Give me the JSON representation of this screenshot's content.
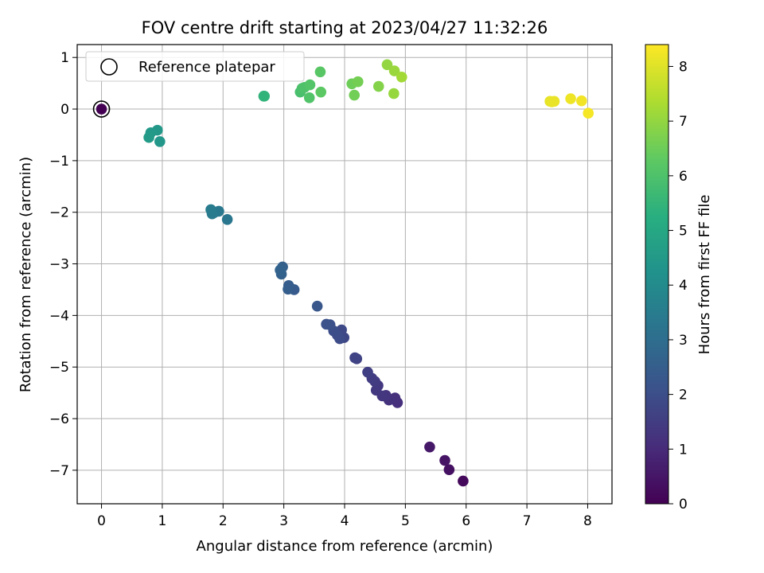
{
  "chart_data": {
    "type": "scatter",
    "title": "FOV centre drift starting at 2023/04/27 11:32:26",
    "xlabel": "Angular distance from reference (arcmin)",
    "ylabel": "Rotation from reference (arcmin)",
    "xlim": [
      -0.4,
      8.4
    ],
    "ylim": [
      -7.65,
      1.25
    ],
    "xticks": [
      0,
      1,
      2,
      3,
      4,
      5,
      6,
      7,
      8
    ],
    "yticks": [
      1,
      0,
      -1,
      -2,
      -3,
      -4,
      -5,
      -6,
      -7
    ],
    "grid": true,
    "legend": {
      "position": "top-left",
      "entries": [
        "Reference platepar"
      ]
    },
    "colorbar": {
      "label": "Hours from first FF file",
      "range": [
        0,
        8.4
      ],
      "ticks": [
        0,
        1,
        2,
        3,
        4,
        5,
        6,
        7,
        8
      ],
      "colormap": "viridis"
    },
    "reference_point": {
      "x": 0,
      "y": 0
    },
    "points": [
      {
        "x": 0.0,
        "y": 0.0,
        "t": 0.0
      },
      {
        "x": 5.95,
        "y": -7.21,
        "t": 0.2
      },
      {
        "x": 5.72,
        "y": -6.99,
        "t": 0.35
      },
      {
        "x": 5.65,
        "y": -6.81,
        "t": 0.45
      },
      {
        "x": 5.4,
        "y": -6.55,
        "t": 0.55
      },
      {
        "x": 4.87,
        "y": -5.69,
        "t": 1.1
      },
      {
        "x": 4.83,
        "y": -5.6,
        "t": 1.15
      },
      {
        "x": 4.73,
        "y": -5.64,
        "t": 1.2
      },
      {
        "x": 4.68,
        "y": -5.55,
        "t": 1.25
      },
      {
        "x": 4.62,
        "y": -5.56,
        "t": 1.3
      },
      {
        "x": 4.55,
        "y": -5.36,
        "t": 1.35
      },
      {
        "x": 4.52,
        "y": -5.45,
        "t": 1.4
      },
      {
        "x": 4.5,
        "y": -5.28,
        "t": 1.45
      },
      {
        "x": 4.45,
        "y": -5.22,
        "t": 1.5
      },
      {
        "x": 4.38,
        "y": -5.1,
        "t": 1.55
      },
      {
        "x": 4.2,
        "y": -4.84,
        "t": 1.65
      },
      {
        "x": 4.17,
        "y": -4.82,
        "t": 1.7
      },
      {
        "x": 3.99,
        "y": -4.43,
        "t": 1.8
      },
      {
        "x": 3.95,
        "y": -4.28,
        "t": 1.85
      },
      {
        "x": 3.92,
        "y": -4.45,
        "t": 1.9
      },
      {
        "x": 3.88,
        "y": -4.38,
        "t": 1.95
      },
      {
        "x": 3.82,
        "y": -4.3,
        "t": 2.0
      },
      {
        "x": 3.76,
        "y": -4.18,
        "t": 2.05
      },
      {
        "x": 3.7,
        "y": -4.17,
        "t": 2.1
      },
      {
        "x": 3.55,
        "y": -3.82,
        "t": 2.25
      },
      {
        "x": 3.17,
        "y": -3.5,
        "t": 2.4
      },
      {
        "x": 3.08,
        "y": -3.42,
        "t": 2.45
      },
      {
        "x": 3.07,
        "y": -3.49,
        "t": 2.5
      },
      {
        "x": 2.98,
        "y": -3.06,
        "t": 2.55
      },
      {
        "x": 2.96,
        "y": -3.2,
        "t": 2.6
      },
      {
        "x": 2.94,
        "y": -3.12,
        "t": 2.65
      },
      {
        "x": 2.07,
        "y": -2.14,
        "t": 3.3
      },
      {
        "x": 1.93,
        "y": -1.98,
        "t": 3.35
      },
      {
        "x": 1.85,
        "y": -2.01,
        "t": 3.4
      },
      {
        "x": 1.82,
        "y": -2.03,
        "t": 3.45
      },
      {
        "x": 1.8,
        "y": -1.95,
        "t": 3.5
      },
      {
        "x": 0.96,
        "y": -0.63,
        "t": 4.4
      },
      {
        "x": 0.92,
        "y": -0.41,
        "t": 4.45
      },
      {
        "x": 0.81,
        "y": -0.46,
        "t": 4.5
      },
      {
        "x": 0.78,
        "y": -0.55,
        "t": 4.55
      },
      {
        "x": 2.67,
        "y": 0.25,
        "t": 5.4
      },
      {
        "x": 2.68,
        "y": 0.25,
        "t": 5.45
      },
      {
        "x": 3.27,
        "y": 0.33,
        "t": 5.9
      },
      {
        "x": 3.3,
        "y": 0.4,
        "t": 5.95
      },
      {
        "x": 3.34,
        "y": 0.42,
        "t": 6.0
      },
      {
        "x": 3.42,
        "y": 0.22,
        "t": 6.05
      },
      {
        "x": 3.43,
        "y": 0.47,
        "t": 6.1
      },
      {
        "x": 3.6,
        "y": 0.72,
        "t": 6.2
      },
      {
        "x": 3.61,
        "y": 0.33,
        "t": 6.25
      },
      {
        "x": 4.12,
        "y": 0.49,
        "t": 6.5
      },
      {
        "x": 4.16,
        "y": 0.27,
        "t": 6.55
      },
      {
        "x": 4.22,
        "y": 0.53,
        "t": 6.6
      },
      {
        "x": 4.56,
        "y": 0.44,
        "t": 6.8
      },
      {
        "x": 4.7,
        "y": 0.86,
        "t": 7.0
      },
      {
        "x": 4.81,
        "y": 0.3,
        "t": 7.05
      },
      {
        "x": 4.82,
        "y": 0.74,
        "t": 7.1
      },
      {
        "x": 4.94,
        "y": 0.62,
        "t": 7.2
      },
      {
        "x": 7.38,
        "y": 0.15,
        "t": 8.1
      },
      {
        "x": 7.41,
        "y": 0.14,
        "t": 8.12
      },
      {
        "x": 7.45,
        "y": 0.15,
        "t": 8.15
      },
      {
        "x": 7.72,
        "y": 0.2,
        "t": 8.2
      },
      {
        "x": 7.9,
        "y": 0.16,
        "t": 8.25
      },
      {
        "x": 8.01,
        "y": -0.08,
        "t": 8.3
      }
    ]
  }
}
